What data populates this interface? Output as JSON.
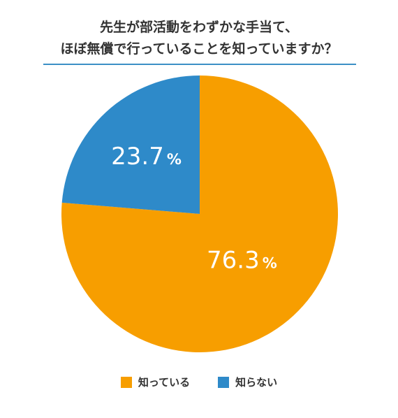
{
  "chart_data": {
    "type": "pie",
    "title_lines": [
      "先生が部活動をわずかな手当て、",
      "ほぼ無償で行っていることを知っていますか？"
    ],
    "slices": [
      {
        "label": "知っている",
        "value": 76.3,
        "display": "76.3",
        "unit": "%",
        "color": "#f79e00"
      },
      {
        "label": "知らない",
        "value": 23.7,
        "display": "23.7",
        "unit": "%",
        "color": "#2e8ac9"
      }
    ],
    "legend_position": "bottom"
  }
}
